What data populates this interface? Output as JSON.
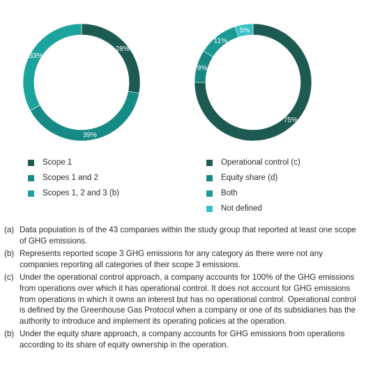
{
  "chart_data": [
    {
      "type": "pie",
      "donut": true,
      "title": "",
      "categories": [
        "Scope 1",
        "Scopes 1 and 2",
        "Scopes 1, 2 and 3 (b)"
      ],
      "values": [
        28,
        39,
        33
      ],
      "value_labels": [
        "28%",
        "39%",
        "33%"
      ],
      "colors": [
        "#1c5a52",
        "#168a85",
        "#1da39e"
      ]
    },
    {
      "type": "pie",
      "donut": true,
      "title": "",
      "categories": [
        "Operational control (c)",
        "Equity share (d)",
        "Both",
        "Not defined"
      ],
      "values": [
        75,
        9,
        11,
        5
      ],
      "value_labels": [
        "75%",
        "9%",
        "11%",
        "5%"
      ],
      "colors": [
        "#1c5a52",
        "#178783",
        "#1a9893",
        "#36c0c8"
      ]
    }
  ],
  "footnotes": [
    {
      "marker": "(a)",
      "text": "Data population is of the 43 companies within the study group that reported at least one scope of GHG emissions."
    },
    {
      "marker": "(b)",
      "text": "Represents reported scope 3 GHG emissions for any category as there were not any companies reporting all categories of their scope 3 emissions."
    },
    {
      "marker": "(c)",
      "text": "Under the operational control approach, a company accounts for 100% of the GHG emissions from operations over which it has operational control. It does not account for GHG emissions from operations in which it owns an interest but has no operational control. Operational control is defined by the Greenhouse Gas Protocol when a company or one of its subsidiaries has the authority to introduce and implement its operating policies at the operation."
    },
    {
      "marker": "(b)",
      "text": "Under the equity share approach, a company accounts for GHG emissions from operations according to its share of equity ownership in the operation."
    }
  ]
}
